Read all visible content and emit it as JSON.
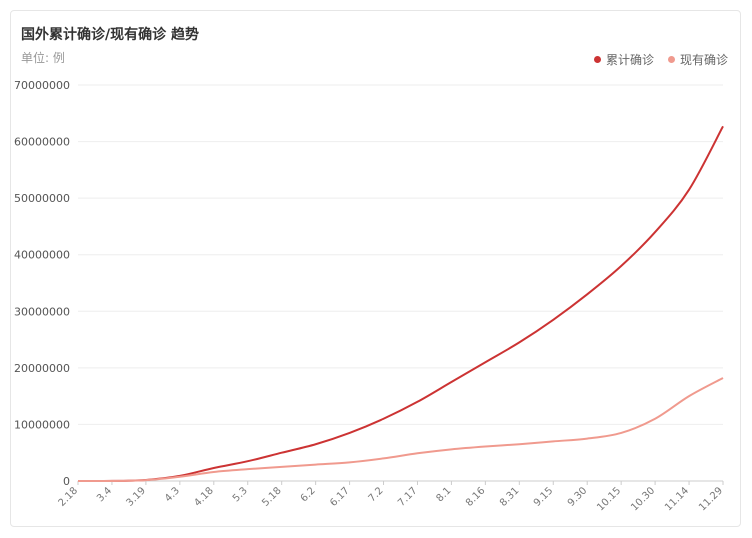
{
  "header": {
    "title": "国外累计确诊/现有确诊 趋势",
    "unit": "单位: 例"
  },
  "colors": {
    "cumulative": "#cc3333",
    "current": "#f09a8e",
    "grid": "#eeeeee",
    "axis": "#cccccc"
  },
  "chart_data": {
    "type": "line",
    "categories": [
      "2.18",
      "3.4",
      "3.19",
      "4.3",
      "4.18",
      "5.3",
      "5.18",
      "6.2",
      "6.17",
      "7.2",
      "7.17",
      "8.1",
      "8.16",
      "8.31",
      "9.15",
      "9.30",
      "10.15",
      "10.30",
      "11.14",
      "11.29"
    ],
    "series": [
      {
        "name": "累计确诊",
        "values": [
          0,
          15000,
          180000,
          900000,
          2300000,
          3500000,
          5000000,
          6500000,
          8500000,
          11000000,
          14000000,
          17500000,
          21000000,
          24500000,
          28500000,
          33000000,
          38000000,
          44000000,
          51500000,
          62700000
        ]
      },
      {
        "name": "现有确诊",
        "values": [
          0,
          10000,
          150000,
          750000,
          1600000,
          2100000,
          2500000,
          2900000,
          3300000,
          4000000,
          4900000,
          5600000,
          6100000,
          6500000,
          7000000,
          7500000,
          8500000,
          11000000,
          15000000,
          18200000
        ]
      }
    ],
    "yticks": [
      "0",
      "10000000",
      "20000000",
      "30000000",
      "40000000",
      "50000000",
      "60000000",
      "70000000"
    ],
    "ylim": [
      0,
      70000000
    ],
    "grid": true,
    "legend": "top-right"
  }
}
